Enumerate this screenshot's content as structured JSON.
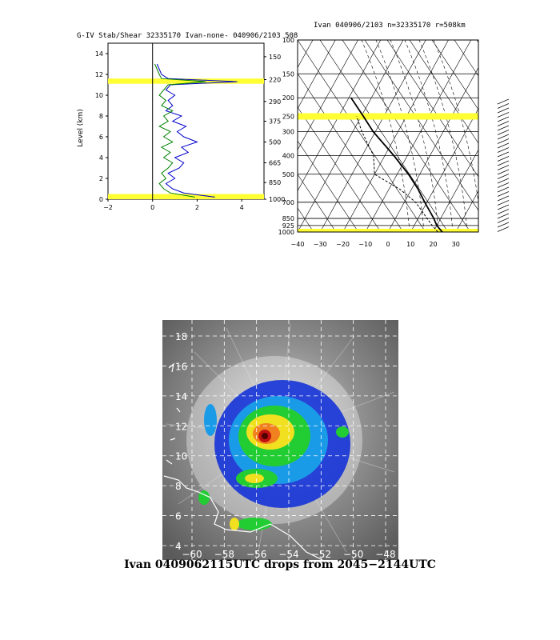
{
  "stab_panel": {
    "title": "G-IV Stab/Shear 32335170 Ivan-none- 040906/2103 508",
    "ylabel": "Level (km)",
    "y_ticks": [
      "14",
      "12",
      "10",
      "8",
      "6",
      "4",
      "2",
      "0"
    ],
    "x_ticks": [
      "−2",
      "0",
      "2",
      "4"
    ],
    "right_ticks": [
      "150",
      "220",
      "290",
      "375",
      "500",
      "665",
      "850",
      "1000"
    ]
  },
  "skewt_panel": {
    "title": "Ivan 040906/2103 n=32335170 r=508km",
    "p_ticks": [
      "100",
      "150",
      "200",
      "250",
      "300",
      "400",
      "500",
      "700",
      "850",
      "925",
      "1000"
    ],
    "t_ticks": [
      "−40",
      "−30",
      "−20",
      "−10",
      "0",
      "10",
      "20",
      "30"
    ]
  },
  "satellite": {
    "lat_labels": [
      "18",
      "16",
      "14",
      "12",
      "10",
      "8",
      "6",
      "4"
    ],
    "lon_labels": [
      "−60",
      "−58",
      "−56",
      "−54",
      "−52",
      "−50",
      "−48"
    ],
    "caption": "Ivan 0409062115UTC drops from 2045−2144UTC"
  },
  "chart_data": [
    {
      "type": "line",
      "title": "G-IV Stab/Shear 32335170 Ivan-none- 040906/2103 508",
      "ylabel": "Level (km)",
      "xlim": [
        -2,
        5
      ],
      "ylim": [
        0,
        15
      ],
      "highlight_levels_km": [
        [
          11.1,
          11.6
        ],
        [
          0.0,
          0.5
        ]
      ],
      "series": [
        {
          "color": "#0000cc",
          "y": [
            0.2,
            0.6,
            1.0,
            1.5,
            2.0,
            2.5,
            3.0,
            3.5,
            4.0,
            4.5,
            5.0,
            5.5,
            6.0,
            6.5,
            7.0,
            7.5,
            8.0,
            8.5,
            9.0,
            9.5,
            10.0,
            10.5,
            11.0,
            11.3,
            11.6,
            12.0,
            12.5,
            13.0
          ],
          "x": [
            2.8,
            1.4,
            0.9,
            0.6,
            1.0,
            0.7,
            1.2,
            1.4,
            1.0,
            1.6,
            1.3,
            2.0,
            1.4,
            1.1,
            1.5,
            0.9,
            1.3,
            0.6,
            0.9,
            0.7,
            1.0,
            0.6,
            0.8,
            3.8,
            0.7,
            0.4,
            0.3,
            0.2
          ]
        },
        {
          "color": "#008000",
          "y": [
            0.2,
            0.6,
            1.0,
            1.5,
            2.0,
            2.5,
            3.0,
            3.5,
            4.0,
            4.5,
            5.0,
            5.5,
            6.0,
            6.5,
            7.0,
            7.5,
            8.0,
            8.5,
            9.0,
            9.5,
            10.0,
            10.5,
            11.0,
            11.3,
            11.6,
            12.0,
            12.5,
            13.0
          ],
          "x": [
            1.9,
            0.8,
            0.5,
            0.3,
            0.6,
            0.4,
            0.7,
            0.9,
            0.5,
            0.8,
            0.4,
            0.9,
            0.5,
            0.8,
            0.3,
            0.7,
            0.5,
            0.9,
            0.4,
            0.6,
            0.3,
            0.5,
            0.7,
            2.4,
            0.4,
            0.3,
            0.2,
            0.1
          ]
        }
      ]
    },
    {
      "type": "line",
      "title": "Ivan 040906/2103 n=32335170 r=508km",
      "xlim": [
        -40,
        40
      ],
      "ylim": [
        1000,
        100
      ],
      "highlight_pressures": [
        250,
        1000
      ],
      "series": [
        {
          "name": "",
          "p": [
            1000,
            925,
            850,
            700,
            600,
            500,
            400,
            300,
            250,
            200
          ],
          "x": [
            24,
            20,
            17,
            9,
            3,
            -5,
            -16,
            -31,
            -39,
            -49
          ]
        },
        {
          "name": "",
          "p": [
            1000,
            925,
            850,
            700,
            600,
            500,
            400,
            300,
            250
          ],
          "x": [
            22,
            18,
            14,
            5,
            -5,
            -20,
            -25,
            -36,
            -42
          ]
        }
      ]
    }
  ]
}
